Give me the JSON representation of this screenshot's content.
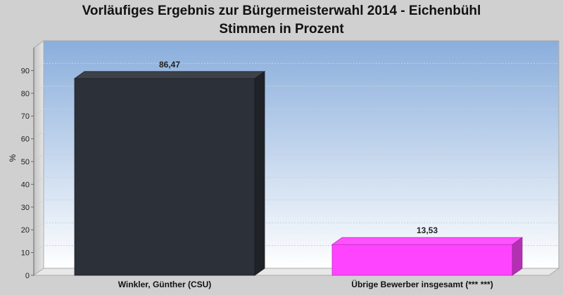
{
  "chart_data": {
    "type": "bar",
    "title": "Vorläufiges Ergebnis zur Bürgermeisterwahl 2014 - Eichenbühl",
    "subtitle": "Stimmen in Prozent",
    "categories": [
      "Winkler, Günther (CSU)",
      "Übrige Bewerber insgesamt (***  ***)"
    ],
    "values": [
      86.47,
      13.53
    ],
    "value_labels": [
      "86,47",
      "13,53"
    ],
    "colors": [
      "#2c3038",
      "#ff44ff"
    ],
    "xlabel": "",
    "ylabel": "%",
    "ylim": [
      0,
      100
    ],
    "yticks": [
      0,
      10,
      20,
      30,
      40,
      50,
      60,
      70,
      80,
      90
    ],
    "grid": true,
    "legend": "none"
  }
}
